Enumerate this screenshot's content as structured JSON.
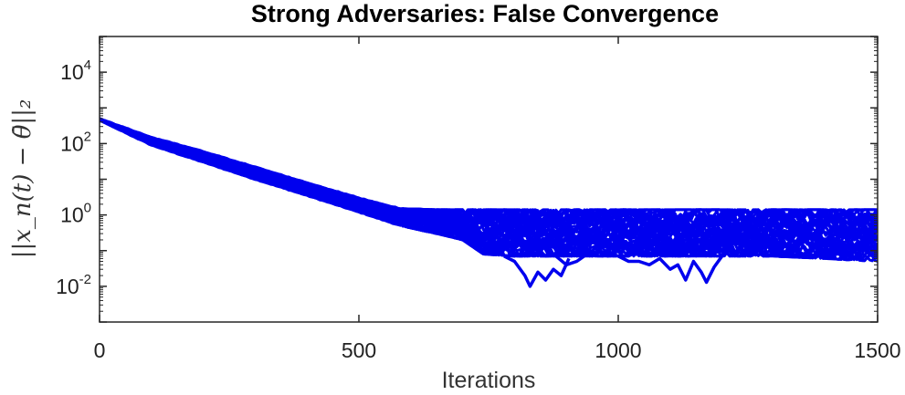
{
  "chart_data": {
    "type": "line",
    "title": "Strong Adversaries: False Convergence",
    "xlabel": "Iterations",
    "ylabel": "||x_n(t) − θ̄||₂",
    "xlim": [
      0,
      1500
    ],
    "ylim": [
      0.001,
      100000
    ],
    "yscale": "log",
    "xticks": [
      0,
      500,
      1000,
      1500
    ],
    "yticks": [
      {
        "base": "10",
        "exp": "-2",
        "value": 0.01
      },
      {
        "base": "10",
        "exp": "0",
        "value": 1
      },
      {
        "base": "10",
        "exp": "2",
        "value": 100
      },
      {
        "base": "10",
        "exp": "4",
        "value": 10000
      }
    ],
    "grid": false,
    "series_color": "#0000ee",
    "series_count": 40,
    "start_value": 500,
    "upper_envelope": {
      "x": [
        0,
        100,
        200,
        300,
        400,
        500,
        580,
        650,
        700,
        800,
        900,
        1000,
        1100,
        1200,
        1300,
        1400,
        1500
      ],
      "y": [
        500,
        150,
        60,
        22,
        8,
        3,
        1.5,
        1.4,
        1.4,
        1.4,
        1.4,
        1.4,
        1.4,
        1.4,
        1.4,
        1.4,
        1.4
      ]
    },
    "lower_envelope": {
      "x": [
        0,
        100,
        200,
        300,
        400,
        500,
        580,
        650,
        700,
        740,
        800,
        900,
        1000,
        1100,
        1200,
        1300,
        1400,
        1500
      ],
      "y": [
        450,
        90,
        30,
        10,
        3.5,
        1.2,
        0.5,
        0.3,
        0.2,
        0.08,
        0.07,
        0.07,
        0.07,
        0.07,
        0.07,
        0.07,
        0.06,
        0.05
      ]
    },
    "dips": [
      {
        "x": [
          780,
          800,
          820,
          830,
          845,
          860,
          875,
          890,
          905
        ],
        "y": [
          0.07,
          0.05,
          0.02,
          0.01,
          0.025,
          0.015,
          0.03,
          0.02,
          0.06
        ]
      },
      {
        "x": [
          1000,
          1020,
          1040,
          1060,
          1080,
          1100,
          1115,
          1130,
          1145,
          1160,
          1170,
          1185,
          1200
        ],
        "y": [
          0.07,
          0.05,
          0.05,
          0.04,
          0.06,
          0.03,
          0.04,
          0.015,
          0.05,
          0.025,
          0.013,
          0.035,
          0.07
        ]
      },
      {
        "x": [
          880,
          900,
          920,
          940
        ],
        "y": [
          0.07,
          0.04,
          0.05,
          0.08
        ]
      }
    ]
  }
}
